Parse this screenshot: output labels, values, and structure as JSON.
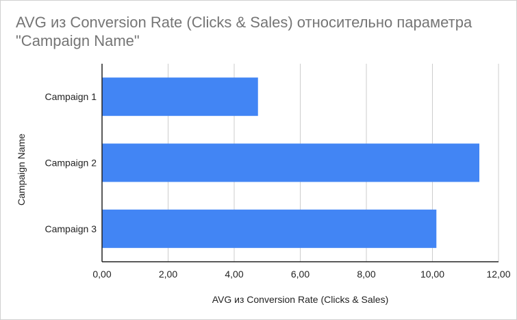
{
  "chart_data": {
    "type": "bar",
    "orientation": "horizontal",
    "title": "AVG из Conversion Rate (Clicks & Sales) относительно параметра \"Campaign Name\"",
    "xlabel": "AVG из Conversion Rate (Clicks & Sales)",
    "ylabel": "Campaign Name",
    "categories": [
      "Campaign 1",
      "Campaign 2",
      "Campaign 3"
    ],
    "values": [
      4.72,
      11.42,
      10.12
    ],
    "xlim": [
      0,
      12
    ],
    "xticks": [
      0,
      2,
      4,
      6,
      8,
      10,
      12
    ],
    "xtick_labels": [
      "0,00",
      "2,00",
      "4,00",
      "6,00",
      "8,00",
      "10,00",
      "12,00"
    ],
    "grid": true,
    "bar_color": "#4285f4",
    "grid_color": "#cccccc",
    "axis_color": "#222222"
  }
}
